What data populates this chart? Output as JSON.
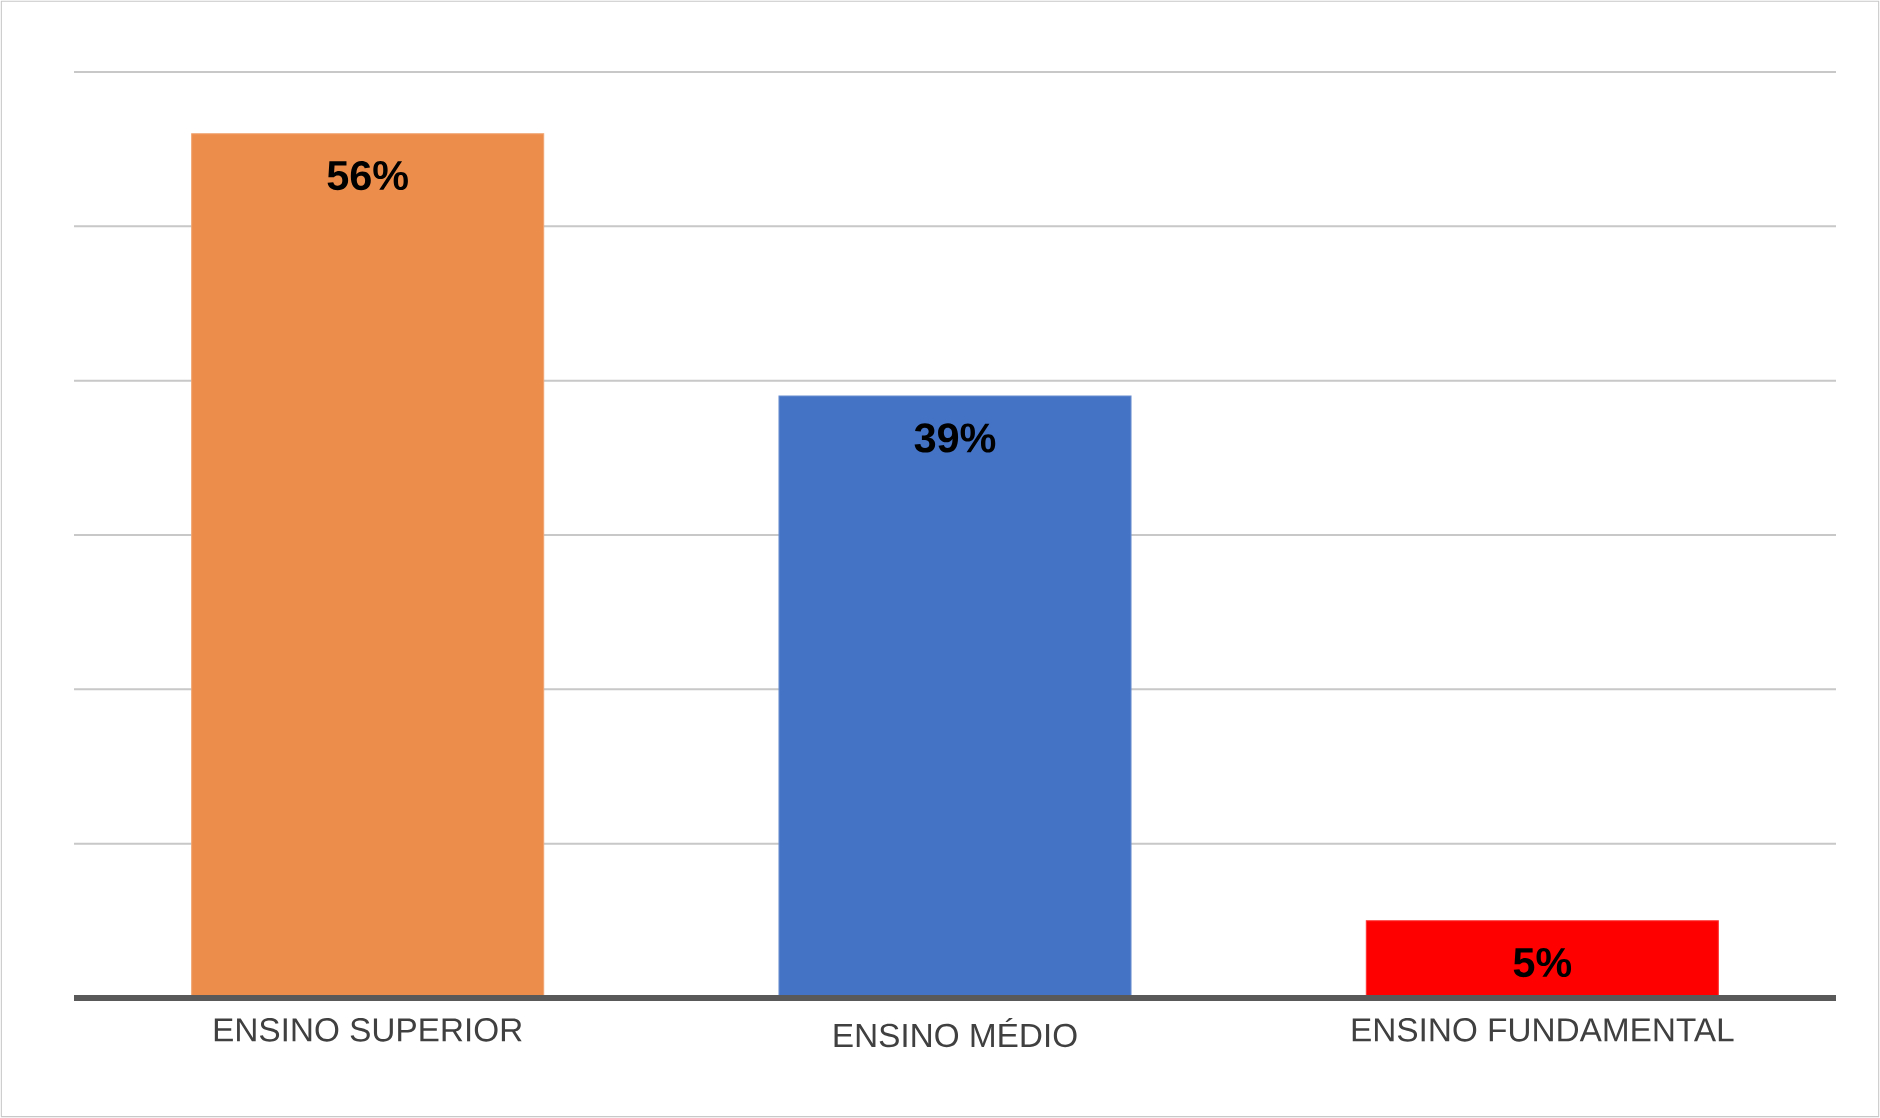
{
  "chart_data": {
    "type": "bar",
    "categories": [
      "ENSINO SUPERIOR",
      "ENSINO MÉDIO",
      "ENSINO FUNDAMENTAL"
    ],
    "values": [
      56,
      39,
      5
    ],
    "colors": [
      "#ed8d4c",
      "#4472c4",
      "#ff0000"
    ],
    "value_labels": [
      "56%",
      "39%",
      "5%"
    ],
    "ylim": [
      0,
      60
    ],
    "yticks": [
      {
        "value": 0,
        "label": null
      },
      {
        "value": 10,
        "label": null
      },
      {
        "value": 20,
        "label": null
      },
      {
        "value": 30,
        "label": null
      },
      {
        "value": 40,
        "label": null
      },
      {
        "value": 50,
        "label": null
      },
      {
        "value": 60,
        "label": null
      }
    ],
    "tick_labels": "x",
    "grid": "y"
  }
}
